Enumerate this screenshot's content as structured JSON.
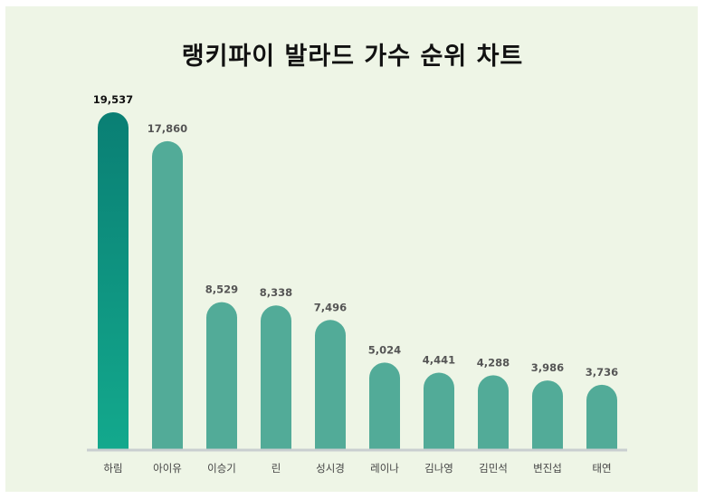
{
  "chart_data": {
    "type": "bar",
    "title": "랭키파이 발라드 가수 순위 차트",
    "xlabel": "",
    "ylabel": "",
    "categories": [
      "하림",
      "아이유",
      "이승기",
      "린",
      "성시경",
      "레이나",
      "김나영",
      "김민석",
      "변진섭",
      "태연"
    ],
    "values": [
      19537,
      17860,
      8529,
      8338,
      7496,
      5024,
      4441,
      4288,
      3986,
      3736
    ],
    "value_labels": [
      "19,537",
      "17,860",
      "8,529",
      "8,338",
      "7,496",
      "5,024",
      "4,441",
      "4,288",
      "3,986",
      "3,736"
    ],
    "ylim": [
      0,
      20000
    ],
    "grid": false,
    "colors": {
      "background": "#eef5e6",
      "bar": "#52ab98",
      "top_bar_start": "#0a7f74",
      "top_bar_end": "#13a98d",
      "baseline": "#c9ced0"
    }
  }
}
